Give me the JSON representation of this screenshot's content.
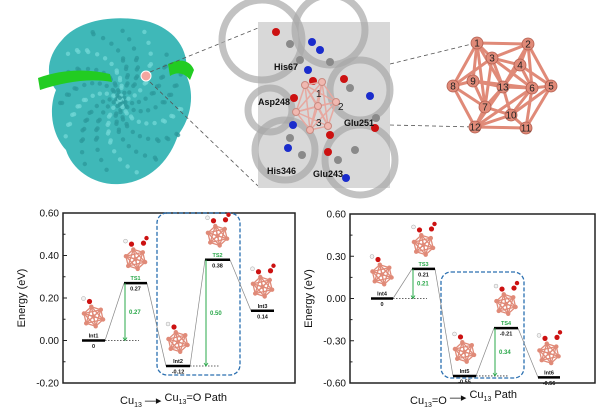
{
  "colors": {
    "copper": "#e08a78",
    "copper_dark": "#b45f50",
    "barrier": "#2aa84a",
    "protein": "#3fb8b8",
    "helix": "#22cc22",
    "box": "#2a6fb0",
    "oxygen": "#cc1111",
    "nitrogen": "#1a2ccc",
    "carbon": "#8a8a8a"
  },
  "top_panel": {
    "residues": [
      "His67",
      "Asp248",
      "Glu251",
      "His346",
      "Glu243"
    ],
    "inset_atoms": [
      "1",
      "2",
      "3"
    ],
    "cluster_atoms": [
      "1",
      "2",
      "3",
      "4",
      "5",
      "6",
      "7",
      "8",
      "9",
      "10",
      "11",
      "12",
      "13"
    ]
  },
  "chart_data": [
    {
      "type": "energy-level",
      "ylabel": "Energy (eV)",
      "xlabel_parts": [
        "Cu",
        "13",
        "Cu",
        "13",
        "=O Path"
      ],
      "ylim": [
        -0.2,
        0.6
      ],
      "yticks": [
        "0.60",
        "0.40",
        "0.20",
        "0.00",
        "-0.20"
      ],
      "ytick_values": [
        0.6,
        0.4,
        0.2,
        0.0,
        -0.2
      ],
      "levels": [
        {
          "name": "Int1",
          "value": 0,
          "label": "0",
          "ts": false
        },
        {
          "name": "TS1",
          "value": 0.27,
          "label": "0.27",
          "ts": true
        },
        {
          "name": "Int2",
          "value": -0.12,
          "label": "-0.12",
          "ts": false
        },
        {
          "name": "TS2",
          "value": 0.38,
          "label": "0.38",
          "ts": true
        },
        {
          "name": "Int3",
          "value": 0.14,
          "label": "0.14",
          "ts": false
        }
      ],
      "barriers": [
        {
          "from": 0,
          "to": 1,
          "label": "0.27"
        },
        {
          "from": 2,
          "to": 3,
          "label": "0.50"
        }
      ],
      "highlight": [
        2,
        3
      ]
    },
    {
      "type": "energy-level",
      "ylabel": "Energy (eV)",
      "xlabel_parts": [
        "Cu",
        "13",
        "=O",
        "Cu",
        "13",
        " Path"
      ],
      "ylim": [
        -0.6,
        0.6
      ],
      "yticks": [
        "0.60",
        "0.30",
        "0.00",
        "-0.30",
        "-0.60"
      ],
      "ytick_values": [
        0.6,
        0.3,
        0.0,
        -0.3,
        -0.6
      ],
      "levels": [
        {
          "name": "Int4",
          "value": 0,
          "label": "0",
          "ts": false
        },
        {
          "name": "TS3",
          "value": 0.21,
          "label": "0.21",
          "ts": true
        },
        {
          "name": "Int5",
          "value": -0.55,
          "label": "-0.55",
          "ts": false
        },
        {
          "name": "TS4",
          "value": -0.21,
          "label": "-0.21",
          "ts": true
        },
        {
          "name": "Int6",
          "value": -0.56,
          "label": "-0.56",
          "ts": false
        }
      ],
      "barriers": [
        {
          "from": 0,
          "to": 1,
          "label": "0.21"
        },
        {
          "from": 2,
          "to": 3,
          "label": "0.34"
        }
      ],
      "highlight": [
        2,
        3
      ]
    }
  ]
}
